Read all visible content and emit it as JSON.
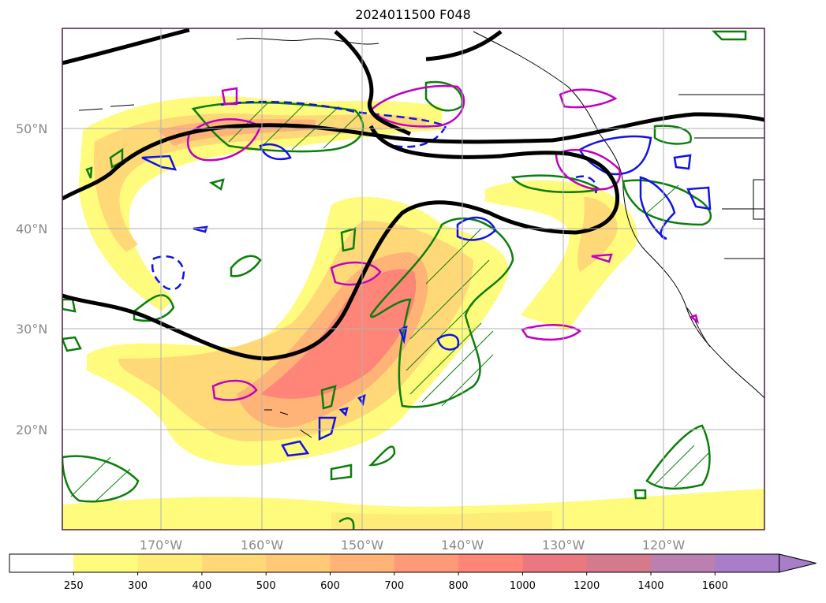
{
  "title": "2024011500 F048",
  "map": {
    "lat_labels": [
      "50°N",
      "40°N",
      "30°N",
      "20°N"
    ],
    "lon_labels": [
      "170°W",
      "160°W",
      "150°W",
      "140°W",
      "130°W",
      "120°W"
    ],
    "lat_range": [
      10,
      60
    ],
    "lon_range": [
      -180,
      -110
    ],
    "grid": true,
    "frame_color": "#4b1e3f"
  },
  "colorbar": {
    "labels": [
      "250",
      "300",
      "400",
      "500",
      "600",
      "700",
      "800",
      "1000",
      "1200",
      "1400",
      "1600"
    ],
    "colors": [
      "#ffffff",
      "#fffb7d",
      "#ffeb78",
      "#ffd977",
      "#ffc978",
      "#ffb377",
      "#ff9a78",
      "#ff8579",
      "#e9787f",
      "#d47a8c",
      "#bb7fb0",
      "#a77ec7"
    ],
    "extend": "max"
  },
  "legend_colors": {
    "jet_contour": "#000000",
    "green_contour": "#0a7f0a",
    "blue_contour": "#1212e8",
    "magenta_contour": "#c000c0"
  }
}
